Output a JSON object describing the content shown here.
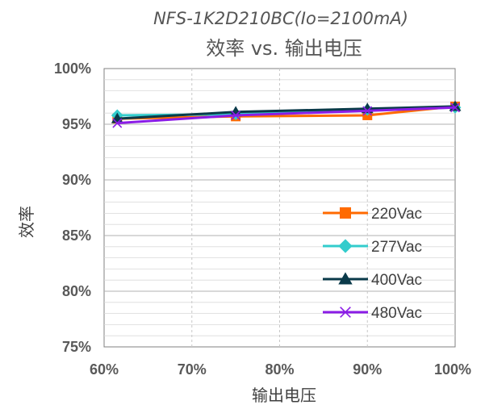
{
  "chart_data": {
    "type": "line",
    "title": "NFS-1K2D210BC(Io=2100mA)",
    "subtitle": "效率 vs. 输出电压",
    "xlabel": "输出电压",
    "ylabel": "效率",
    "xlim": [
      60,
      100
    ],
    "ylim": [
      75,
      100
    ],
    "x_ticks": [
      "60%",
      "70%",
      "80%",
      "90%",
      "100%"
    ],
    "y_ticks": [
      "75%",
      "80%",
      "85%",
      "90%",
      "95%",
      "100%"
    ],
    "grid": true,
    "legend_position": "bottom-right",
    "x": [
      61.5,
      75,
      90,
      100
    ],
    "series": [
      {
        "name": "220Vac",
        "values": [
          95.5,
          95.7,
          95.8,
          96.6
        ],
        "color": "#FF6A00",
        "marker": "square"
      },
      {
        "name": "277Vac",
        "values": [
          95.8,
          95.9,
          96.3,
          96.5
        ],
        "color": "#33CCCC",
        "marker": "diamond"
      },
      {
        "name": "400Vac",
        "values": [
          95.5,
          96.1,
          96.4,
          96.6
        ],
        "color": "#0A3A4A",
        "marker": "triangle"
      },
      {
        "name": "480Vac",
        "values": [
          95.1,
          95.8,
          96.2,
          96.5
        ],
        "color": "#8B1CE6",
        "marker": "x"
      }
    ]
  }
}
